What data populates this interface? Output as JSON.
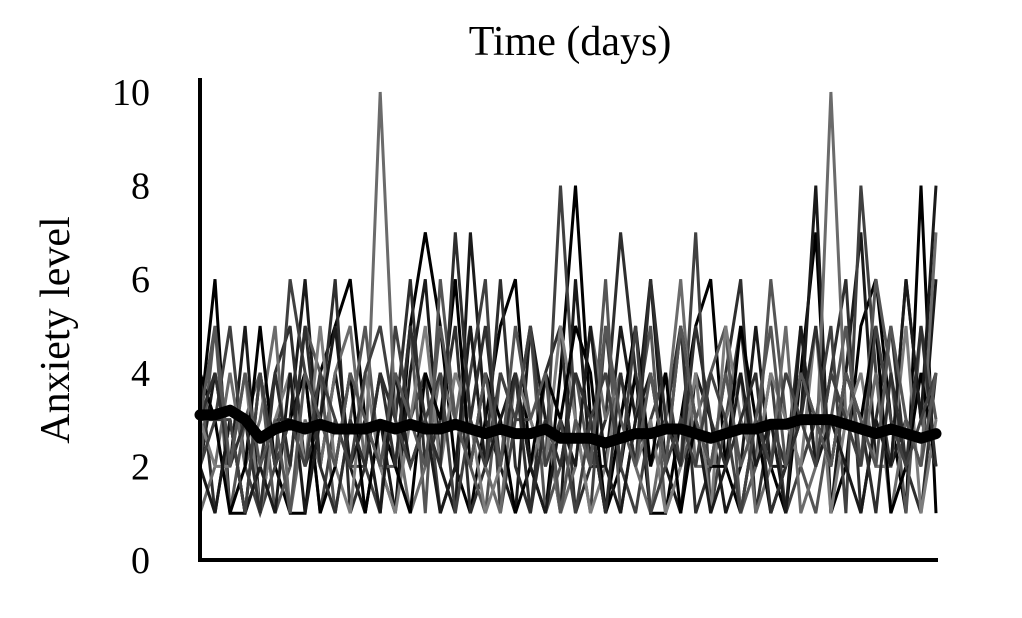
{
  "chart_data": {
    "type": "line",
    "title": "Time (days)",
    "xlabel": "",
    "ylabel": "Anxiety level",
    "ylim": [
      0,
      10
    ],
    "yticks": [
      0,
      2,
      4,
      6,
      8,
      10
    ],
    "x_ticks_shown": false,
    "grid": false,
    "legend": "none",
    "n_days": 50,
    "colors": [
      "#000000",
      "#1a1a1a",
      "#2e2e2e",
      "#404040",
      "#555555",
      "#6b6b6b",
      "#7d7d7d"
    ],
    "series": [
      {
        "values": [
          3,
          6,
          1,
          1,
          4,
          2,
          1,
          1,
          4,
          5,
          6,
          3,
          2,
          1,
          5,
          7,
          5,
          2,
          1,
          3,
          5,
          6,
          2,
          1,
          4,
          8,
          3,
          1,
          2,
          4,
          1,
          1,
          3,
          5,
          6,
          2,
          1,
          3,
          2,
          1,
          4,
          7,
          1,
          2,
          5,
          6,
          3,
          1,
          8,
          1
        ]
      },
      {
        "values": [
          2,
          4,
          2,
          5,
          1,
          3,
          3,
          6,
          2,
          4,
          2,
          1,
          3,
          1,
          4,
          6,
          2,
          1,
          7,
          3,
          2,
          1,
          5,
          3,
          1,
          6,
          2,
          2,
          5,
          3,
          6,
          2,
          1,
          4,
          3,
          1,
          2,
          5,
          2,
          2,
          3,
          8,
          1,
          4,
          7,
          2,
          2,
          3,
          2,
          6
        ]
      },
      {
        "values": [
          4,
          1,
          3,
          1,
          2,
          4,
          5,
          2,
          3,
          6,
          1,
          2,
          4,
          3,
          6,
          2,
          3,
          5,
          1,
          2,
          6,
          2,
          1,
          4,
          5,
          1,
          2,
          3,
          7,
          4,
          2,
          3,
          5,
          1,
          2,
          4,
          6,
          1,
          3,
          2,
          5,
          2,
          4,
          6,
          1,
          3,
          5,
          2,
          1,
          4
        ]
      },
      {
        "values": [
          3,
          3,
          5,
          2,
          1,
          2,
          6,
          4,
          1,
          3,
          2,
          2,
          1,
          5,
          3,
          4,
          1,
          2,
          4,
          6,
          1,
          3,
          3,
          2,
          8,
          3,
          1,
          5,
          2,
          1,
          3,
          4,
          2,
          7,
          1,
          3,
          5,
          2,
          4,
          1,
          2,
          3,
          5,
          1,
          8,
          4,
          2,
          6,
          3,
          2
        ]
      },
      {
        "values": [
          2,
          5,
          1,
          3,
          4,
          1,
          2,
          5,
          4,
          1,
          3,
          5,
          2,
          2,
          5,
          1,
          6,
          3,
          2,
          1,
          4,
          3,
          5,
          1,
          2,
          4,
          2,
          6,
          1,
          3,
          5,
          1,
          2,
          3,
          4,
          5,
          1,
          2,
          6,
          3,
          2,
          1,
          3,
          5,
          2,
          6,
          4,
          1,
          5,
          3
        ]
      },
      {
        "values": [
          1,
          2,
          4,
          2,
          3,
          5,
          1,
          3,
          2,
          4,
          5,
          2,
          10,
          3,
          1,
          2,
          4,
          3,
          5,
          2,
          1,
          4,
          2,
          3,
          1,
          2,
          5,
          3,
          4,
          2,
          1,
          3,
          6,
          2,
          2,
          3,
          4,
          1,
          2,
          5,
          1,
          2,
          10,
          3,
          2,
          4,
          1,
          3,
          2,
          7
        ]
      },
      {
        "values": [
          3,
          2,
          2,
          4,
          1,
          3,
          4,
          2,
          5,
          2,
          1,
          4,
          2,
          1,
          3,
          5,
          2,
          4,
          3,
          1,
          2,
          4,
          3,
          2,
          5,
          3,
          1,
          2,
          4,
          2,
          3,
          1,
          2,
          4,
          1,
          5,
          3,
          2,
          4,
          3,
          2,
          5,
          1,
          3,
          4,
          2,
          2,
          5,
          1,
          3
        ]
      },
      {
        "values": [
          4,
          3,
          1,
          2,
          5,
          2,
          3,
          4,
          1,
          2,
          4,
          1,
          3,
          2,
          1,
          4,
          3,
          6,
          2,
          4,
          3,
          1,
          2,
          4,
          3,
          5,
          4,
          1,
          3,
          5,
          2,
          4,
          1,
          3,
          2,
          2,
          5,
          3,
          1,
          2,
          4,
          3,
          2,
          4,
          3,
          5,
          1,
          2,
          4,
          2
        ]
      },
      {
        "values": [
          2,
          1,
          3,
          1,
          2,
          1,
          4,
          1,
          3,
          5,
          2,
          3,
          1,
          4,
          2,
          3,
          1,
          2,
          5,
          2,
          3,
          4,
          2,
          1,
          3,
          2,
          5,
          2,
          1,
          3,
          4,
          2,
          5,
          3,
          1,
          2,
          4,
          2,
          3,
          1,
          5,
          2,
          3,
          2,
          1,
          3,
          2,
          6,
          3,
          8
        ]
      },
      {
        "values": [
          3,
          4,
          2,
          3,
          1,
          4,
          2,
          5,
          2,
          1,
          3,
          2,
          4,
          2,
          5,
          3,
          2,
          7,
          3,
          5,
          2,
          4,
          1,
          3,
          2,
          4,
          3,
          1,
          4,
          2,
          6,
          3,
          2,
          5,
          3,
          2,
          3,
          4,
          1,
          2,
          3,
          5,
          2,
          4,
          3,
          1,
          4,
          2,
          5,
          2
        ]
      },
      {
        "values": [
          2,
          3,
          3,
          1,
          4,
          2,
          3,
          2,
          4,
          3,
          2,
          4,
          5,
          3,
          2,
          3,
          4,
          1,
          3,
          2,
          4,
          3,
          5,
          2,
          3,
          1,
          3,
          4,
          2,
          5,
          1,
          2,
          3,
          2,
          4,
          3,
          1,
          3,
          2,
          4,
          3,
          2,
          4,
          3,
          2,
          5,
          3,
          2,
          3,
          4
        ]
      },
      {
        "values": [
          3,
          5,
          2,
          4,
          2,
          3,
          1,
          4,
          3,
          2,
          4,
          3,
          2,
          4,
          3,
          2,
          5,
          3,
          2,
          4,
          2,
          5,
          3,
          4,
          1,
          3,
          2,
          5,
          3,
          2,
          4,
          2,
          5,
          3,
          2,
          4,
          2,
          3,
          5,
          2,
          4,
          3,
          2,
          4,
          3,
          2,
          5,
          3,
          2,
          4
        ]
      }
    ],
    "mean_series": {
      "values": [
        3.1,
        3.1,
        3.2,
        3.0,
        2.6,
        2.8,
        2.9,
        2.8,
        2.9,
        2.8,
        2.8,
        2.8,
        2.9,
        2.8,
        2.9,
        2.8,
        2.8,
        2.9,
        2.8,
        2.7,
        2.8,
        2.7,
        2.7,
        2.8,
        2.6,
        2.6,
        2.6,
        2.5,
        2.6,
        2.7,
        2.7,
        2.8,
        2.8,
        2.7,
        2.6,
        2.7,
        2.8,
        2.8,
        2.9,
        2.9,
        3.0,
        3.0,
        3.0,
        2.9,
        2.8,
        2.7,
        2.8,
        2.7,
        2.6,
        2.7
      ]
    }
  }
}
